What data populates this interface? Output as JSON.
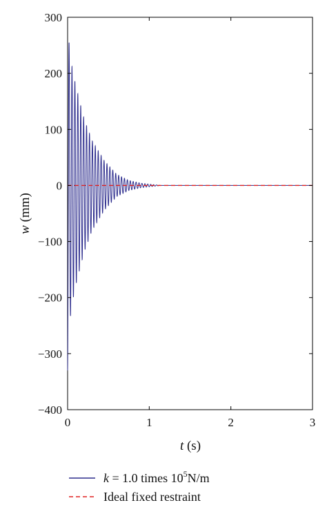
{
  "chart_data": {
    "type": "line",
    "title": "",
    "xlabel": {
      "var": "t",
      "unit": " (s)"
    },
    "ylabel": {
      "var": "w",
      "unit": " (mm)"
    },
    "xlim": [
      0,
      3
    ],
    "ylim": [
      -400,
      300
    ],
    "xticks": [
      0,
      1,
      2,
      3
    ],
    "yticks": [
      300,
      200,
      100,
      0,
      -100,
      -200,
      -300,
      -400
    ],
    "grid": false,
    "legend_position": "bottom",
    "series": [
      {
        "name_parts": {
          "var": "k",
          "text": " = 1.0 times 10",
          "sup": "5",
          "unit": "N/m"
        },
        "color": "#2b2b8c",
        "style": "solid",
        "oscillation": {
          "samples": 2400,
          "t_end": 1.15,
          "frequency_hz": 28,
          "initial_value": -330,
          "envelope": [
            [
              0,
              330
            ],
            [
              0.012,
              262
            ],
            [
              0.05,
              215
            ],
            [
              0.1,
              178
            ],
            [
              0.2,
              120
            ],
            [
              0.3,
              80
            ],
            [
              0.45,
              44
            ],
            [
              0.6,
              20
            ],
            [
              0.75,
              9
            ],
            [
              0.9,
              4
            ],
            [
              1.05,
              1.5
            ],
            [
              1.15,
              0
            ]
          ]
        }
      },
      {
        "name": "Ideal fixed restraint",
        "color": "#e02020",
        "style": "dashed",
        "x": [
          0,
          3
        ],
        "y": [
          0,
          0
        ]
      }
    ]
  }
}
